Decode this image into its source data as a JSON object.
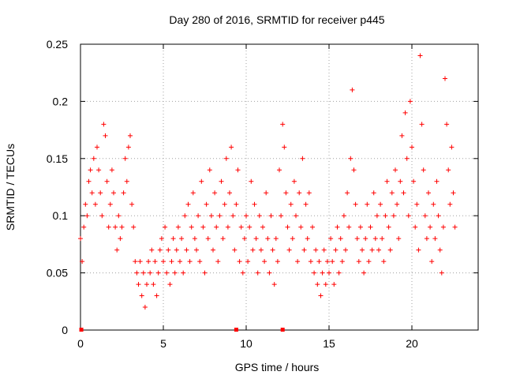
{
  "chart_data": {
    "type": "scatter",
    "title": "Day 280 of 2016, SRMTID for receiver p445",
    "xlabel": "GPS time / hours",
    "ylabel": "SRMTID / TECUs",
    "xlim": [
      0,
      24
    ],
    "ylim": [
      0,
      0.25
    ],
    "xticks": [
      0,
      5,
      10,
      15,
      20
    ],
    "xtick_labels": [
      "0",
      "5",
      "10",
      "15",
      "20"
    ],
    "yticks": [
      0,
      0.05,
      0.1,
      0.15,
      0.2,
      0.25
    ],
    "ytick_labels": [
      "0",
      "0.05",
      "0.1",
      "0.15",
      "0.2",
      "0.25"
    ],
    "grid": true,
    "marker": "+",
    "color": "#ff0000",
    "gap_markers_x": [
      0.05,
      9.4,
      12.2
    ],
    "series": [
      {
        "name": "SRMTID",
        "points": [
          [
            0.0,
            0.08
          ],
          [
            0.1,
            0.06
          ],
          [
            0.2,
            0.09
          ],
          [
            0.3,
            0.11
          ],
          [
            0.4,
            0.1
          ],
          [
            0.5,
            0.13
          ],
          [
            0.6,
            0.14
          ],
          [
            0.7,
            0.12
          ],
          [
            0.8,
            0.15
          ],
          [
            0.9,
            0.11
          ],
          [
            1.0,
            0.16
          ],
          [
            1.1,
            0.14
          ],
          [
            1.2,
            0.12
          ],
          [
            1.3,
            0.1
          ],
          [
            1.4,
            0.18
          ],
          [
            1.5,
            0.17
          ],
          [
            1.6,
            0.13
          ],
          [
            1.7,
            0.09
          ],
          [
            1.8,
            0.11
          ],
          [
            1.9,
            0.14
          ],
          [
            2.0,
            0.12
          ],
          [
            2.1,
            0.09
          ],
          [
            2.2,
            0.07
          ],
          [
            2.3,
            0.1
          ],
          [
            2.4,
            0.08
          ],
          [
            2.5,
            0.09
          ],
          [
            2.6,
            0.12
          ],
          [
            2.7,
            0.15
          ],
          [
            2.8,
            0.13
          ],
          [
            2.9,
            0.16
          ],
          [
            3.0,
            0.17
          ],
          [
            3.1,
            0.11
          ],
          [
            3.2,
            0.09
          ],
          [
            3.3,
            0.06
          ],
          [
            3.4,
            0.05
          ],
          [
            3.5,
            0.04
          ],
          [
            3.6,
            0.06
          ],
          [
            3.7,
            0.03
          ],
          [
            3.8,
            0.05
          ],
          [
            3.9,
            0.02
          ],
          [
            4.0,
            0.04
          ],
          [
            4.1,
            0.06
          ],
          [
            4.2,
            0.05
          ],
          [
            4.3,
            0.07
          ],
          [
            4.4,
            0.04
          ],
          [
            4.5,
            0.06
          ],
          [
            4.6,
            0.03
          ],
          [
            4.7,
            0.05
          ],
          [
            4.8,
            0.07
          ],
          [
            4.9,
            0.08
          ],
          [
            5.0,
            0.06
          ],
          [
            5.1,
            0.09
          ],
          [
            5.2,
            0.05
          ],
          [
            5.3,
            0.07
          ],
          [
            5.4,
            0.04
          ],
          [
            5.5,
            0.06
          ],
          [
            5.6,
            0.08
          ],
          [
            5.7,
            0.05
          ],
          [
            5.8,
            0.07
          ],
          [
            5.9,
            0.09
          ],
          [
            6.0,
            0.06
          ],
          [
            6.1,
            0.08
          ],
          [
            6.2,
            0.05
          ],
          [
            6.3,
            0.1
          ],
          [
            6.4,
            0.07
          ],
          [
            6.5,
            0.11
          ],
          [
            6.6,
            0.06
          ],
          [
            6.7,
            0.09
          ],
          [
            6.8,
            0.12
          ],
          [
            6.9,
            0.08
          ],
          [
            7.0,
            0.07
          ],
          [
            7.1,
            0.1
          ],
          [
            7.2,
            0.06
          ],
          [
            7.3,
            0.13
          ],
          [
            7.4,
            0.09
          ],
          [
            7.5,
            0.05
          ],
          [
            7.6,
            0.11
          ],
          [
            7.7,
            0.08
          ],
          [
            7.8,
            0.14
          ],
          [
            7.9,
            0.1
          ],
          [
            8.0,
            0.07
          ],
          [
            8.1,
            0.12
          ],
          [
            8.2,
            0.09
          ],
          [
            8.3,
            0.06
          ],
          [
            8.4,
            0.1
          ],
          [
            8.5,
            0.13
          ],
          [
            8.6,
            0.08
          ],
          [
            8.7,
            0.11
          ],
          [
            8.8,
            0.15
          ],
          [
            8.9,
            0.09
          ],
          [
            9.0,
            0.12
          ],
          [
            9.1,
            0.16
          ],
          [
            9.2,
            0.1
          ],
          [
            9.3,
            0.07
          ],
          [
            9.4,
            0.11
          ],
          [
            9.5,
            0.14
          ],
          [
            9.6,
            0.06
          ],
          [
            9.7,
            0.09
          ],
          [
            9.8,
            0.05
          ],
          [
            9.9,
            0.08
          ],
          [
            10.0,
            0.1
          ],
          [
            10.1,
            0.06
          ],
          [
            10.2,
            0.09
          ],
          [
            10.3,
            0.13
          ],
          [
            10.4,
            0.07
          ],
          [
            10.5,
            0.11
          ],
          [
            10.6,
            0.08
          ],
          [
            10.7,
            0.05
          ],
          [
            10.8,
            0.1
          ],
          [
            10.9,
            0.07
          ],
          [
            11.0,
            0.09
          ],
          [
            11.1,
            0.06
          ],
          [
            11.2,
            0.12
          ],
          [
            11.3,
            0.08
          ],
          [
            11.4,
            0.05
          ],
          [
            11.5,
            0.1
          ],
          [
            11.6,
            0.07
          ],
          [
            11.7,
            0.04
          ],
          [
            11.8,
            0.08
          ],
          [
            11.9,
            0.06
          ],
          [
            12.0,
            0.14
          ],
          [
            12.1,
            0.1
          ],
          [
            12.2,
            0.18
          ],
          [
            12.3,
            0.16
          ],
          [
            12.4,
            0.12
          ],
          [
            12.5,
            0.09
          ],
          [
            12.6,
            0.07
          ],
          [
            12.7,
            0.11
          ],
          [
            12.8,
            0.08
          ],
          [
            12.9,
            0.13
          ],
          [
            13.0,
            0.1
          ],
          [
            13.1,
            0.06
          ],
          [
            13.2,
            0.12
          ],
          [
            13.3,
            0.09
          ],
          [
            13.4,
            0.15
          ],
          [
            13.5,
            0.07
          ],
          [
            13.6,
            0.11
          ],
          [
            13.7,
            0.08
          ],
          [
            13.8,
            0.12
          ],
          [
            13.9,
            0.06
          ],
          [
            14.0,
            0.09
          ],
          [
            14.1,
            0.05
          ],
          [
            14.2,
            0.07
          ],
          [
            14.3,
            0.04
          ],
          [
            14.4,
            0.06
          ],
          [
            14.5,
            0.03
          ],
          [
            14.6,
            0.05
          ],
          [
            14.7,
            0.07
          ],
          [
            14.8,
            0.04
          ],
          [
            14.9,
            0.06
          ],
          [
            15.0,
            0.05
          ],
          [
            15.1,
            0.08
          ],
          [
            15.2,
            0.06
          ],
          [
            15.3,
            0.04
          ],
          [
            15.4,
            0.07
          ],
          [
            15.5,
            0.09
          ],
          [
            15.6,
            0.05
          ],
          [
            15.7,
            0.08
          ],
          [
            15.8,
            0.06
          ],
          [
            15.9,
            0.1
          ],
          [
            16.0,
            0.07
          ],
          [
            16.1,
            0.12
          ],
          [
            16.2,
            0.09
          ],
          [
            16.3,
            0.15
          ],
          [
            16.4,
            0.21
          ],
          [
            16.5,
            0.14
          ],
          [
            16.6,
            0.11
          ],
          [
            16.7,
            0.08
          ],
          [
            16.8,
            0.06
          ],
          [
            16.9,
            0.09
          ],
          [
            17.0,
            0.07
          ],
          [
            17.1,
            0.05
          ],
          [
            17.2,
            0.08
          ],
          [
            17.3,
            0.11
          ],
          [
            17.4,
            0.06
          ],
          [
            17.5,
            0.09
          ],
          [
            17.6,
            0.07
          ],
          [
            17.7,
            0.12
          ],
          [
            17.8,
            0.08
          ],
          [
            17.9,
            0.1
          ],
          [
            18.0,
            0.07
          ],
          [
            18.1,
            0.11
          ],
          [
            18.2,
            0.08
          ],
          [
            18.3,
            0.06
          ],
          [
            18.4,
            0.1
          ],
          [
            18.5,
            0.13
          ],
          [
            18.6,
            0.09
          ],
          [
            18.7,
            0.07
          ],
          [
            18.8,
            0.12
          ],
          [
            18.9,
            0.1
          ],
          [
            19.0,
            0.14
          ],
          [
            19.1,
            0.11
          ],
          [
            19.2,
            0.08
          ],
          [
            19.3,
            0.13
          ],
          [
            19.4,
            0.17
          ],
          [
            19.5,
            0.12
          ],
          [
            19.6,
            0.19
          ],
          [
            19.7,
            0.15
          ],
          [
            19.8,
            0.1
          ],
          [
            19.9,
            0.2
          ],
          [
            20.0,
            0.16
          ],
          [
            20.1,
            0.13
          ],
          [
            20.2,
            0.09
          ],
          [
            20.3,
            0.11
          ],
          [
            20.4,
            0.07
          ],
          [
            20.5,
            0.24
          ],
          [
            20.6,
            0.18
          ],
          [
            20.7,
            0.14
          ],
          [
            20.8,
            0.1
          ],
          [
            20.9,
            0.08
          ],
          [
            21.0,
            0.12
          ],
          [
            21.1,
            0.09
          ],
          [
            21.2,
            0.06
          ],
          [
            21.3,
            0.11
          ],
          [
            21.4,
            0.08
          ],
          [
            21.5,
            0.13
          ],
          [
            21.6,
            0.1
          ],
          [
            21.7,
            0.07
          ],
          [
            21.8,
            0.05
          ],
          [
            21.9,
            0.09
          ],
          [
            22.0,
            0.22
          ],
          [
            22.1,
            0.18
          ],
          [
            22.2,
            0.14
          ],
          [
            22.3,
            0.11
          ],
          [
            22.4,
            0.16
          ],
          [
            22.5,
            0.12
          ],
          [
            22.6,
            0.09
          ]
        ]
      }
    ]
  }
}
